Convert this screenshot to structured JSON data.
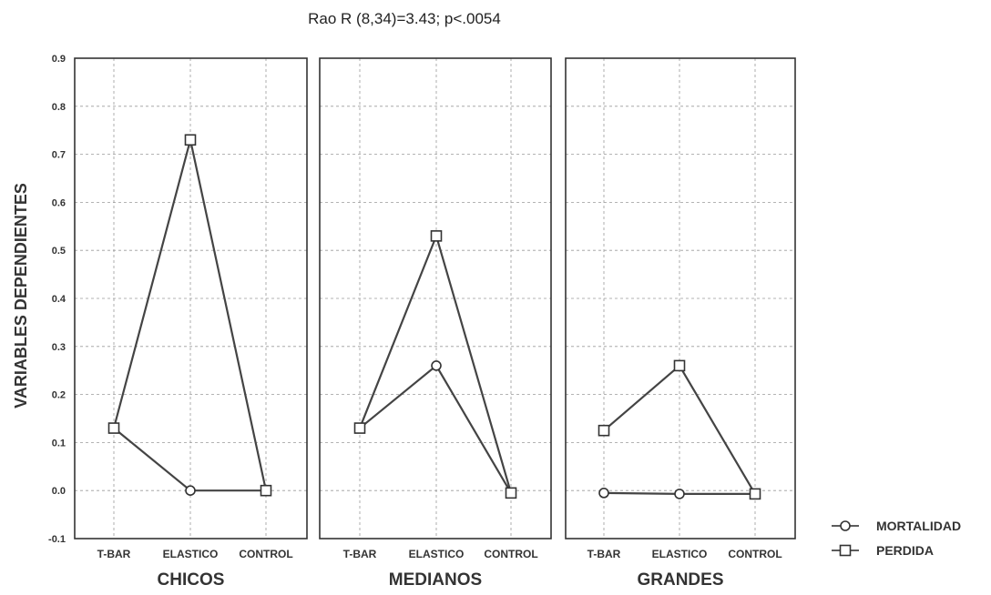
{
  "chart_data": {
    "type": "line",
    "title": "Rao R (8,34)=3.43; p<.0054",
    "ylabel": "VARIABLES DEPENDIENTES",
    "ylim": [
      -0.1,
      0.9
    ],
    "yticks": [
      "-0.1",
      "0.0",
      "0.1",
      "0.2",
      "0.3",
      "0.4",
      "0.5",
      "0.6",
      "0.7",
      "0.8",
      "0.9"
    ],
    "grid": true,
    "legend_position": "bottom-right",
    "categories": [
      "T-BAR",
      "ELASTICO",
      "CONTROL"
    ],
    "panels": [
      {
        "group": "CHICOS",
        "series": [
          {
            "name": "MORTALIDAD",
            "marker": "circle",
            "values": [
              0.13,
              0.0,
              0.0
            ]
          },
          {
            "name": "PERDIDA",
            "marker": "square",
            "values": [
              0.13,
              0.73,
              0.0
            ]
          }
        ]
      },
      {
        "group": "MEDIANOS",
        "series": [
          {
            "name": "MORTALIDAD",
            "marker": "circle",
            "values": [
              0.13,
              0.26,
              -0.005
            ]
          },
          {
            "name": "PERDIDA",
            "marker": "square",
            "values": [
              0.13,
              0.53,
              -0.005
            ]
          }
        ]
      },
      {
        "group": "GRANDES",
        "series": [
          {
            "name": "MORTALIDAD",
            "marker": "circle",
            "values": [
              -0.005,
              -0.007,
              -0.007
            ]
          },
          {
            "name": "PERDIDA",
            "marker": "square",
            "values": [
              0.125,
              0.26,
              -0.007
            ]
          }
        ]
      }
    ],
    "legend": [
      {
        "name": "MORTALIDAD",
        "marker": "circle"
      },
      {
        "name": "PERDIDA",
        "marker": "square"
      }
    ]
  }
}
